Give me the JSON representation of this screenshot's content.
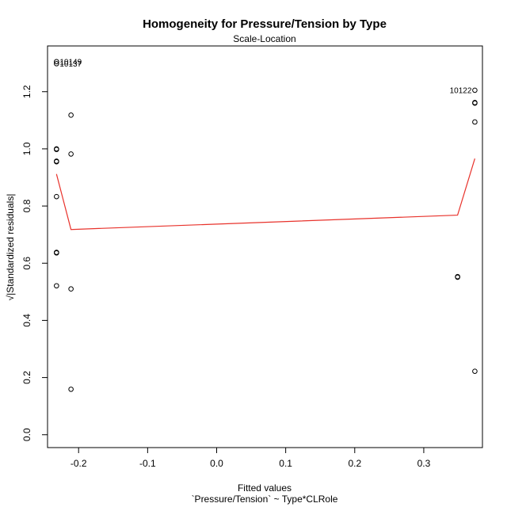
{
  "chart_data": {
    "type": "scatter",
    "title": "Homogeneity for Pressure/Tension by Type",
    "subtitle": "Scale-Location",
    "xlabel": "Fitted values",
    "xlabel2": "`Pressure/Tension` ~ Type*CLRole",
    "ylabel": "√|Standardized residuals|",
    "xlim": [
      -0.245,
      0.385
    ],
    "ylim": [
      -0.045,
      1.36
    ],
    "xticks": [
      -0.2,
      -0.1,
      0.0,
      0.1,
      0.2,
      0.3
    ],
    "xtick_labels": [
      "-0.2",
      "-0.1",
      "0.0",
      "0.1",
      "0.2",
      "0.3"
    ],
    "yticks": [
      0.0,
      0.2,
      0.4,
      0.6,
      0.8,
      1.0,
      1.2
    ],
    "ytick_labels": [
      "0.0",
      "0.2",
      "0.4",
      "0.6",
      "0.8",
      "1.0",
      "1.2"
    ],
    "grid": false,
    "points": [
      {
        "x": -0.232,
        "y": 1.305
      },
      {
        "x": -0.232,
        "y": 1.298
      },
      {
        "x": -0.232,
        "y": 1.0
      },
      {
        "x": -0.232,
        "y": 0.998
      },
      {
        "x": -0.232,
        "y": 0.957
      },
      {
        "x": -0.232,
        "y": 0.955
      },
      {
        "x": -0.232,
        "y": 0.833
      },
      {
        "x": -0.232,
        "y": 0.638
      },
      {
        "x": -0.232,
        "y": 0.636
      },
      {
        "x": -0.232,
        "y": 0.521
      },
      {
        "x": -0.211,
        "y": 1.118
      },
      {
        "x": -0.211,
        "y": 0.982
      },
      {
        "x": -0.211,
        "y": 0.51
      },
      {
        "x": -0.211,
        "y": 0.159
      },
      {
        "x": 0.349,
        "y": 0.553
      },
      {
        "x": 0.349,
        "y": 0.551
      },
      {
        "x": 0.374,
        "y": 1.205
      },
      {
        "x": 0.374,
        "y": 1.162
      },
      {
        "x": 0.374,
        "y": 1.16
      },
      {
        "x": 0.374,
        "y": 1.094
      },
      {
        "x": 0.374,
        "y": 0.222
      }
    ],
    "point_labels": [
      {
        "text": "10149",
        "x": -0.232,
        "y": 1.305,
        "anchor": "left"
      },
      {
        "text": "10137",
        "x": -0.232,
        "y": 1.298,
        "anchor": "left"
      },
      {
        "text": "10122",
        "x": 0.374,
        "y": 1.205,
        "anchor": "right"
      }
    ],
    "smoother": {
      "color": "#e8322b",
      "x": [
        -0.232,
        -0.211,
        0.349,
        0.374
      ],
      "y": [
        0.912,
        0.718,
        0.768,
        0.966
      ]
    }
  }
}
